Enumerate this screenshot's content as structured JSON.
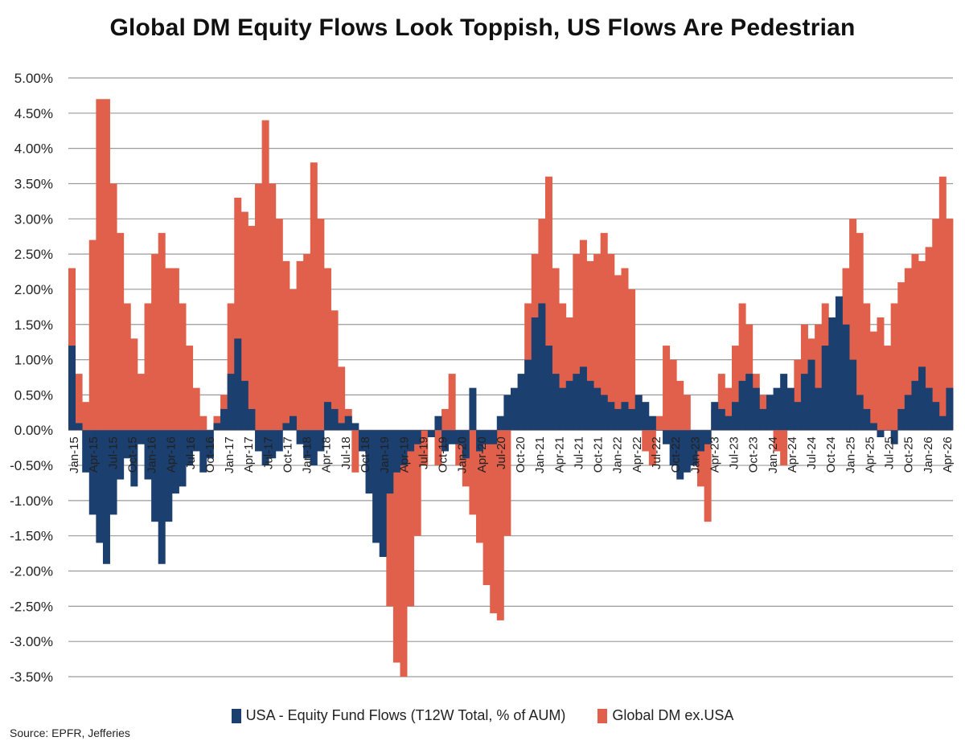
{
  "chart_data": {
    "type": "bar",
    "title": "Global DM Equity Flows Look Toppish, US Flows Are Pedestrian",
    "ylim": [
      -3.5,
      5.0
    ],
    "y_ticks": [
      "5.00%",
      "4.50%",
      "4.00%",
      "3.50%",
      "3.00%",
      "2.50%",
      "2.00%",
      "1.50%",
      "1.00%",
      "0.50%",
      "0.00%",
      "-0.50%",
      "-1.00%",
      "-1.50%",
      "-2.00%",
      "-2.50%",
      "-3.00%",
      "-3.50%"
    ],
    "grid": true,
    "legend_position": "bottom",
    "x_tick_labels": [
      "Jan-15",
      "Apr-15",
      "Jul-15",
      "Oct-15",
      "Jan-16",
      "Apr-16",
      "Jul-16",
      "Oct-16",
      "Jan-17",
      "Apr-17",
      "Jul-17",
      "Oct-17",
      "Jan-18",
      "Apr-18",
      "Jul-18",
      "Oct-18",
      "Jan-19",
      "Apr-19",
      "Jul-19",
      "Oct-19",
      "Jan-20",
      "Apr-20",
      "Jul-20",
      "Oct-20",
      "Jan-21",
      "Apr-21",
      "Jul-21",
      "Oct-21",
      "Jan-22",
      "Apr-22",
      "Jul-22",
      "Oct-22",
      "Jan-23",
      "Apr-23",
      "Jul-23",
      "Oct-23",
      "Jan-24",
      "Apr-24",
      "Jul-24",
      "Oct-24",
      "Jan-25",
      "Apr-25",
      "Jul-25",
      "Oct-25",
      "Jan-26",
      "Apr-26"
    ],
    "series": [
      {
        "name": "USA - Equity Fund Flows (T12W Total, % of AUM)",
        "color": "#1b3f6e",
        "values": [
          1.2,
          0.1,
          -0.6,
          -1.2,
          -1.6,
          -1.9,
          -1.2,
          -0.7,
          -0.4,
          -0.8,
          -0.2,
          -0.7,
          -1.3,
          -1.9,
          -1.3,
          -0.9,
          -0.8,
          -0.5,
          -0.3,
          -0.6,
          -0.4,
          0.1,
          0.3,
          0.8,
          1.3,
          0.7,
          0.3,
          -0.3,
          -0.5,
          -0.4,
          -0.3,
          0.1,
          0.2,
          -0.2,
          -0.4,
          -0.5,
          -0.3,
          0.4,
          0.3,
          0.1,
          0.2,
          0.1,
          -0.3,
          -0.9,
          -1.6,
          -1.8,
          -0.9,
          -0.6,
          -0.5,
          -0.3,
          -0.2,
          0.0,
          -0.1,
          0.2,
          -0.3,
          -0.2,
          -0.2,
          -0.4,
          0.6,
          -0.3,
          -0.2,
          -0.2,
          0.2,
          0.5,
          0.6,
          0.8,
          1.0,
          1.6,
          1.8,
          1.2,
          0.8,
          0.6,
          0.7,
          0.8,
          0.9,
          0.7,
          0.6,
          0.5,
          0.4,
          0.3,
          0.4,
          0.3,
          0.5,
          0.4,
          0.2,
          0.0,
          -0.2,
          -0.5,
          -0.7,
          -0.6,
          -0.5,
          -0.3,
          -0.2,
          0.4,
          0.3,
          0.2,
          0.4,
          0.7,
          0.8,
          0.6,
          0.3,
          0.5,
          0.6,
          0.8,
          0.6,
          0.4,
          0.8,
          1.0,
          0.6,
          1.2,
          1.6,
          1.9,
          1.5,
          1.0,
          0.5,
          0.3,
          0.1,
          -0.1,
          0.0,
          -0.2,
          0.3,
          0.5,
          0.7,
          0.9,
          0.6,
          0.4,
          0.2,
          0.6
        ]
      },
      {
        "name": "Global DM ex.USA",
        "color": "#e0604b",
        "values": [
          2.3,
          0.8,
          0.4,
          2.7,
          4.7,
          4.7,
          3.5,
          2.8,
          1.8,
          1.3,
          0.8,
          1.8,
          2.5,
          2.8,
          2.3,
          2.3,
          1.8,
          1.2,
          0.6,
          0.2,
          0.0,
          0.2,
          0.5,
          1.8,
          3.3,
          3.1,
          2.9,
          3.5,
          4.4,
          3.5,
          3.0,
          2.4,
          2.0,
          2.4,
          2.5,
          3.8,
          3.0,
          2.3,
          1.7,
          0.9,
          0.3,
          -0.6,
          -0.3,
          0.0,
          -0.8,
          -1.6,
          -2.5,
          -3.3,
          -3.5,
          -2.5,
          -1.5,
          -0.5,
          0.0,
          -0.5,
          0.3,
          0.8,
          -0.5,
          -0.8,
          -1.2,
          -1.6,
          -2.2,
          -2.6,
          -2.7,
          -1.5,
          0.2,
          0.5,
          1.8,
          2.5,
          3.0,
          3.6,
          2.3,
          1.8,
          1.6,
          2.5,
          2.7,
          2.4,
          2.5,
          2.8,
          2.5,
          2.2,
          2.3,
          2.0,
          0.5,
          -0.3,
          -0.5,
          0.2,
          1.2,
          1.0,
          0.7,
          0.5,
          -0.2,
          -0.8,
          -1.3,
          0.3,
          0.8,
          0.6,
          1.2,
          1.8,
          1.5,
          0.8,
          0.5,
          0.3,
          -0.3,
          -0.5,
          0.4,
          1.0,
          1.5,
          1.3,
          1.5,
          1.8,
          1.5,
          1.2,
          2.3,
          3.0,
          2.8,
          1.8,
          1.4,
          1.6,
          1.2,
          1.8,
          2.1,
          2.3,
          2.5,
          2.4,
          2.6,
          3.0,
          3.6,
          3.0
        ]
      }
    ],
    "source": "Source: EPFR, Jefferies"
  }
}
